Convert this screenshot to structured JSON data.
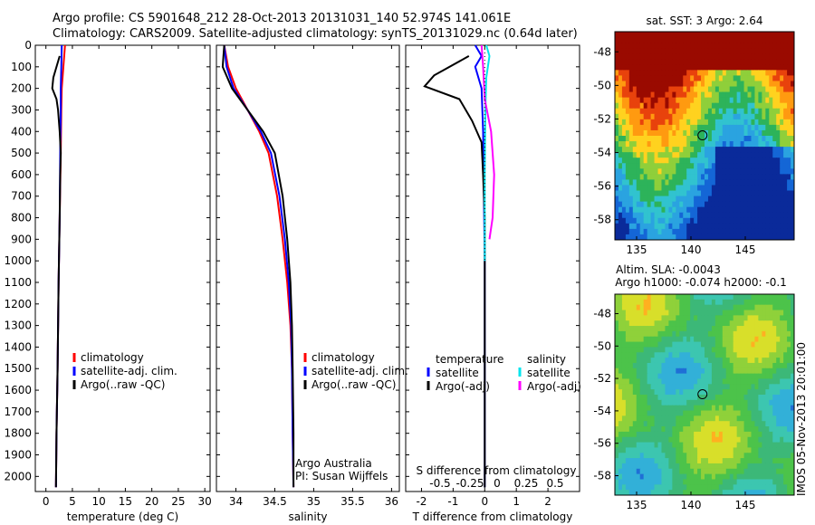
{
  "header": {
    "line1": "Argo profile: CS 5901648_212 28-Oct-2013 20131031_140 52.974S 141.061E",
    "line2": "Climatology: CARS2009. Satellite-adjusted climatology: synTS_20131029.nc (0.64d later)"
  },
  "colors": {
    "climatology": "#ff0000",
    "satellite": "#0000ff",
    "argo": "#000000",
    "salinity_satellite": "#00e5ee",
    "salinity_argo": "#ff00ff"
  },
  "chart_data": [
    {
      "type": "line",
      "xlabel": "temperature (deg C)",
      "ylabel": "",
      "xlim": [
        -2,
        31
      ],
      "ylim": [
        2070,
        0
      ],
      "xticks": [
        0,
        5,
        10,
        15,
        20,
        25,
        30
      ],
      "yticks": [
        0,
        100,
        200,
        300,
        400,
        500,
        600,
        700,
        800,
        900,
        1000,
        1100,
        1200,
        1300,
        1400,
        1500,
        1600,
        1700,
        1800,
        1900,
        2000
      ],
      "legend": [
        "climatology",
        "satellite-adj. clim.",
        "Argo(..raw -QC)"
      ],
      "series": [
        {
          "name": "climatology",
          "color": "#ff0000",
          "points": [
            [
              3.6,
              0
            ],
            [
              3.3,
              100
            ],
            [
              3.0,
              200
            ],
            [
              2.9,
              300
            ],
            [
              2.8,
              500
            ],
            [
              2.6,
              800
            ],
            [
              2.4,
              1100
            ],
            [
              2.2,
              1500
            ],
            [
              2.0,
              1800
            ],
            [
              1.9,
              2050
            ]
          ]
        },
        {
          "name": "satellite-adj. clim.",
          "color": "#0000ff",
          "points": [
            [
              3.0,
              0
            ],
            [
              2.9,
              100
            ],
            [
              2.8,
              200
            ],
            [
              2.8,
              300
            ],
            [
              2.7,
              500
            ],
            [
              2.6,
              800
            ],
            [
              2.4,
              1100
            ],
            [
              2.2,
              1500
            ],
            [
              2.0,
              1800
            ],
            [
              1.9,
              2050
            ]
          ]
        },
        {
          "name": "Argo(..raw -QC)",
          "color": "#000000",
          "points": [
            [
              2.6,
              50
            ],
            [
              1.4,
              150
            ],
            [
              1.2,
              200
            ],
            [
              2.0,
              250
            ],
            [
              2.3,
              300
            ],
            [
              2.6,
              400
            ],
            [
              2.8,
              500
            ],
            [
              2.7,
              600
            ],
            [
              2.6,
              800
            ],
            [
              2.4,
              1100
            ],
            [
              2.2,
              1500
            ],
            [
              2.0,
              1800
            ],
            [
              1.9,
              2050
            ]
          ]
        }
      ]
    },
    {
      "type": "line",
      "xlabel": "salinity",
      "xlim": [
        33.75,
        36.1
      ],
      "ylim": [
        2070,
        0
      ],
      "xticks": [
        34,
        34.5,
        35,
        35.5,
        36
      ],
      "legend": [
        "climatology",
        "satellite-adj. clim.",
        "Argo(..raw -QC)"
      ],
      "annotation": [
        "Argo Australia",
        "PI: Susan Wijffels"
      ],
      "series": [
        {
          "name": "climatology",
          "color": "#ff0000",
          "points": [
            [
              33.85,
              0
            ],
            [
              33.9,
              100
            ],
            [
              34.0,
              200
            ],
            [
              34.15,
              300
            ],
            [
              34.3,
              400
            ],
            [
              34.42,
              500
            ],
            [
              34.53,
              700
            ],
            [
              34.6,
              900
            ],
            [
              34.66,
              1100
            ],
            [
              34.7,
              1300
            ],
            [
              34.72,
              1500
            ],
            [
              34.73,
              1800
            ],
            [
              34.74,
              2050
            ]
          ]
        },
        {
          "name": "satellite-adj. clim.",
          "color": "#0000ff",
          "points": [
            [
              33.85,
              0
            ],
            [
              33.88,
              100
            ],
            [
              33.97,
              200
            ],
            [
              34.15,
              300
            ],
            [
              34.32,
              400
            ],
            [
              34.45,
              500
            ],
            [
              34.56,
              700
            ],
            [
              34.63,
              900
            ],
            [
              34.68,
              1100
            ],
            [
              34.71,
              1300
            ],
            [
              34.72,
              1500
            ],
            [
              34.73,
              1800
            ],
            [
              34.74,
              2050
            ]
          ]
        },
        {
          "name": "Argo(..raw -QC)",
          "color": "#000000",
          "points": [
            [
              33.85,
              0
            ],
            [
              33.83,
              100
            ],
            [
              33.95,
              200
            ],
            [
              34.15,
              300
            ],
            [
              34.35,
              400
            ],
            [
              34.5,
              500
            ],
            [
              34.6,
              700
            ],
            [
              34.66,
              900
            ],
            [
              34.7,
              1100
            ],
            [
              34.72,
              1300
            ],
            [
              34.73,
              1500
            ],
            [
              34.74,
              1800
            ],
            [
              34.74,
              2050
            ]
          ]
        }
      ]
    },
    {
      "type": "line",
      "xlabel": "T difference from climatology",
      "xlabel2": "S difference from climatology",
      "xlim": [
        -2.5,
        3
      ],
      "ylim": [
        2070,
        0
      ],
      "xticks": [
        -2,
        -1,
        0,
        1,
        2
      ],
      "xticks2_labels": [
        "-0.5",
        "-0.25",
        "0",
        "0.25",
        "0.5"
      ],
      "legend_temperature": [
        "temperature",
        "satellite",
        "Argo(-adj)"
      ],
      "legend_salinity": [
        "salinity",
        "satellite",
        "Argo(-adj)"
      ],
      "series": [
        {
          "name": "temperature satellite",
          "color": "#0000ff",
          "points": [
            [
              -0.3,
              0
            ],
            [
              -0.1,
              50
            ],
            [
              -0.3,
              100
            ],
            [
              -0.1,
              200
            ],
            [
              -0.05,
              400
            ],
            [
              0,
              1000
            ],
            [
              0,
              2050
            ]
          ]
        },
        {
          "name": "temperature Argo(-adj)",
          "color": "#000000",
          "points": [
            [
              -0.5,
              50
            ],
            [
              -1.6,
              140
            ],
            [
              -1.9,
              190
            ],
            [
              -0.8,
              250
            ],
            [
              -0.4,
              350
            ],
            [
              -0.1,
              450
            ],
            [
              -0.05,
              600
            ],
            [
              0,
              800
            ],
            [
              0,
              2050
            ]
          ]
        },
        {
          "name": "salinity satellite",
          "color": "#00e5ee",
          "points": [
            [
              0.05,
              0
            ],
            [
              0.15,
              50
            ],
            [
              0.05,
              150
            ],
            [
              0.02,
              300
            ],
            [
              0,
              600
            ],
            [
              0,
              1000
            ]
          ]
        },
        {
          "name": "salinity Argo(-adj)",
          "color": "#ff00ff",
          "points": [
            [
              -0.1,
              0
            ],
            [
              -0.05,
              100
            ],
            [
              0.0,
              250
            ],
            [
              0.2,
              400
            ],
            [
              0.3,
              600
            ],
            [
              0.25,
              800
            ],
            [
              0.15,
              900
            ]
          ]
        }
      ]
    },
    {
      "type": "heatmap",
      "title": "sat. SST: 3 Argo: 2.64",
      "xticks": [
        135,
        140,
        145
      ],
      "yticks": [
        -48,
        -50,
        -52,
        -54,
        -56,
        -58
      ],
      "xlim": [
        133,
        149.5
      ],
      "ylim": [
        -59.2,
        -46.8
      ],
      "marker": {
        "lon": 141.061,
        "lat": -52.974
      }
    },
    {
      "type": "heatmap",
      "title": "Altim. SLA: -0.0043",
      "subtitle": "Argo h1000: -0.074 h2000: -0.1",
      "xticks": [
        135,
        140,
        145
      ],
      "yticks": [
        -48,
        -50,
        -52,
        -54,
        -56,
        -58
      ],
      "xlim": [
        133,
        149.5
      ],
      "ylim": [
        -59.2,
        -46.8
      ],
      "marker": {
        "lon": 141.061,
        "lat": -52.974
      },
      "side_label": "IMOS 05-Nov-2013 20:01:00"
    }
  ]
}
